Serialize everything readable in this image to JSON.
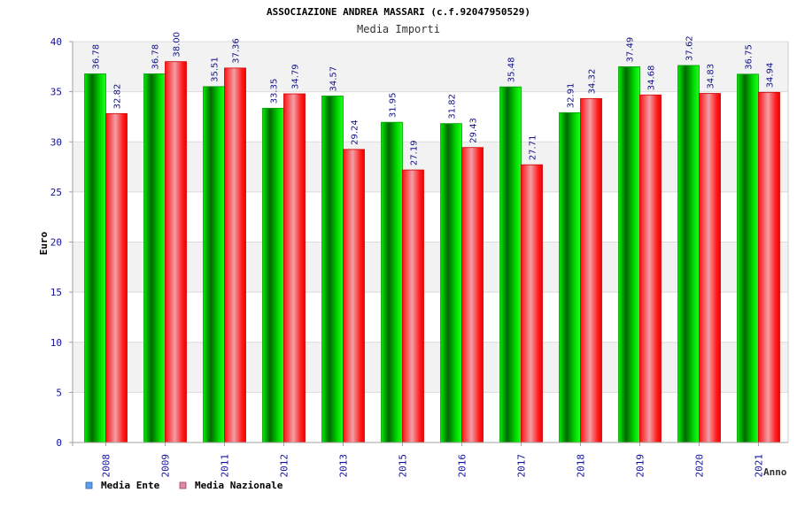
{
  "chart_data": {
    "type": "bar",
    "title": "ASSOCIAZIONE ANDREA MASSARI (c.f.92047950529)",
    "subtitle": "Media Importi",
    "xlabel": "Anno",
    "ylabel": "Euro",
    "ylim": [
      0,
      40
    ],
    "yticks": [
      "0",
      "5",
      "10",
      "15",
      "20",
      "25",
      "30",
      "35",
      "40"
    ],
    "grid": true,
    "legend_position": "bottom-left",
    "categories": [
      "2008",
      "2009",
      "2011",
      "2012",
      "2013",
      "2015",
      "2016",
      "2017",
      "2018",
      "2019",
      "2020",
      "2021"
    ],
    "series": [
      {
        "name": "Media Ente",
        "color": "#00c000",
        "legend_color": "#5aa0f0",
        "values": [
          36.78,
          36.78,
          35.51,
          33.35,
          34.57,
          31.95,
          31.82,
          35.48,
          32.91,
          37.49,
          37.62,
          36.75
        ],
        "labels": [
          "36.78",
          "36.78",
          "35.51",
          "33.35",
          "34.57",
          "31.95",
          "31.82",
          "35.48",
          "32.91",
          "37.49",
          "37.62",
          "36.75"
        ]
      },
      {
        "name": "Media Nazionale",
        "color": "#e8161e",
        "legend_color": "#e08aa8",
        "values": [
          32.82,
          38.0,
          37.36,
          34.79,
          29.24,
          27.19,
          29.43,
          27.71,
          34.32,
          34.68,
          34.83,
          34.94
        ],
        "labels": [
          "32.82",
          "38.00",
          "37.36",
          "34.79",
          "29.24",
          "27.19",
          "29.43",
          "27.71",
          "34.32",
          "34.68",
          "34.83",
          "34.94"
        ]
      }
    ]
  }
}
